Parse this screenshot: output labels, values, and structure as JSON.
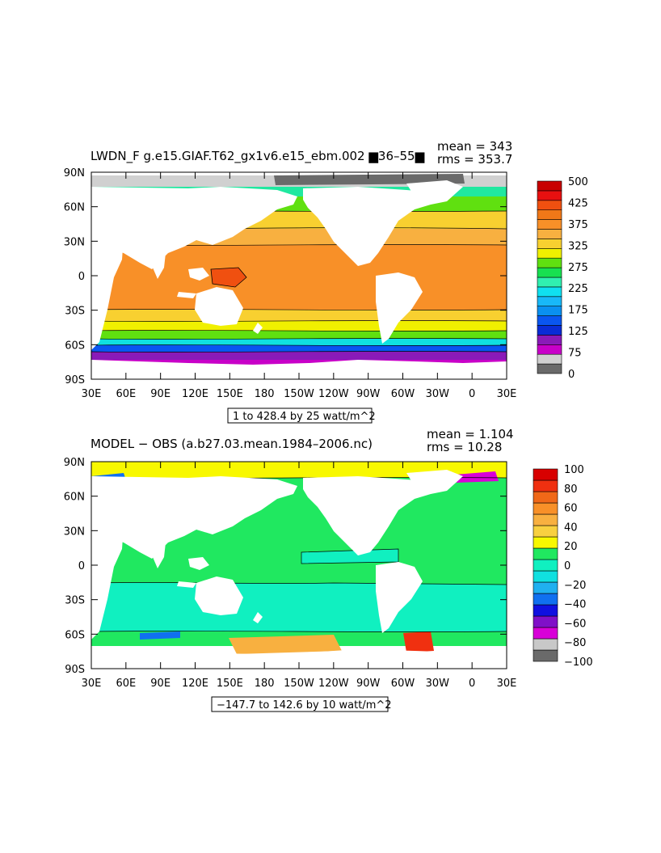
{
  "panels": [
    {
      "title": "LWDN_F g.e15.GIAF.T62_gx1v6.e15_ebm.002 ▆36–55▆",
      "mean_text": "mean = 343",
      "rms_text": "rms = 353.7",
      "range_text": "1 to 428.4 by 25 watt/m^2",
      "colorbar": {
        "colors": [
          "#6a6a6a",
          "#d0d0d0",
          "#c800c8",
          "#8a1ab8",
          "#0a2cd6",
          "#0a56f0",
          "#0a90f0",
          "#18b8f8",
          "#10e0f0",
          "#30f0b0",
          "#18e050",
          "#60e010",
          "#f0f000",
          "#f8d030",
          "#f8b040",
          "#f89028",
          "#f07818",
          "#f05010",
          "#e81010",
          "#c80000"
        ],
        "labels": [
          "0",
          "75",
          "125",
          "175",
          "225",
          "275",
          "325",
          "375",
          "425",
          "500"
        ]
      }
    },
    {
      "title": "MODEL − OBS (a.b27.03.mean.1984–2006.nc)",
      "mean_text": "mean = 1.104",
      "rms_text": "rms = 10.28",
      "range_text": "−147.7 to 142.6 by 10 watt/m^2",
      "colorbar": {
        "colors": [
          "#6a6a6a",
          "#c8c8c8",
          "#d800d8",
          "#8010c8",
          "#1010e0",
          "#1070f0",
          "#20b0f0",
          "#10e0e0",
          "#10f0c0",
          "#20e860",
          "#f8f800",
          "#f8d040",
          "#f8b040",
          "#f89028",
          "#f06818",
          "#f03010",
          "#d80000"
        ],
        "labels": [
          "−100",
          "−80",
          "−60",
          "−40",
          "−20",
          "0",
          "20",
          "40",
          "60",
          "80",
          "100"
        ]
      }
    }
  ],
  "lat_labels": [
    "90N",
    "60N",
    "30N",
    "0",
    "30S",
    "60S",
    "90S"
  ],
  "lon_labels": [
    "30E",
    "60E",
    "90E",
    "120E",
    "150E",
    "180",
    "150W",
    "120W",
    "90W",
    "60W",
    "30W",
    "0",
    "30E"
  ]
}
